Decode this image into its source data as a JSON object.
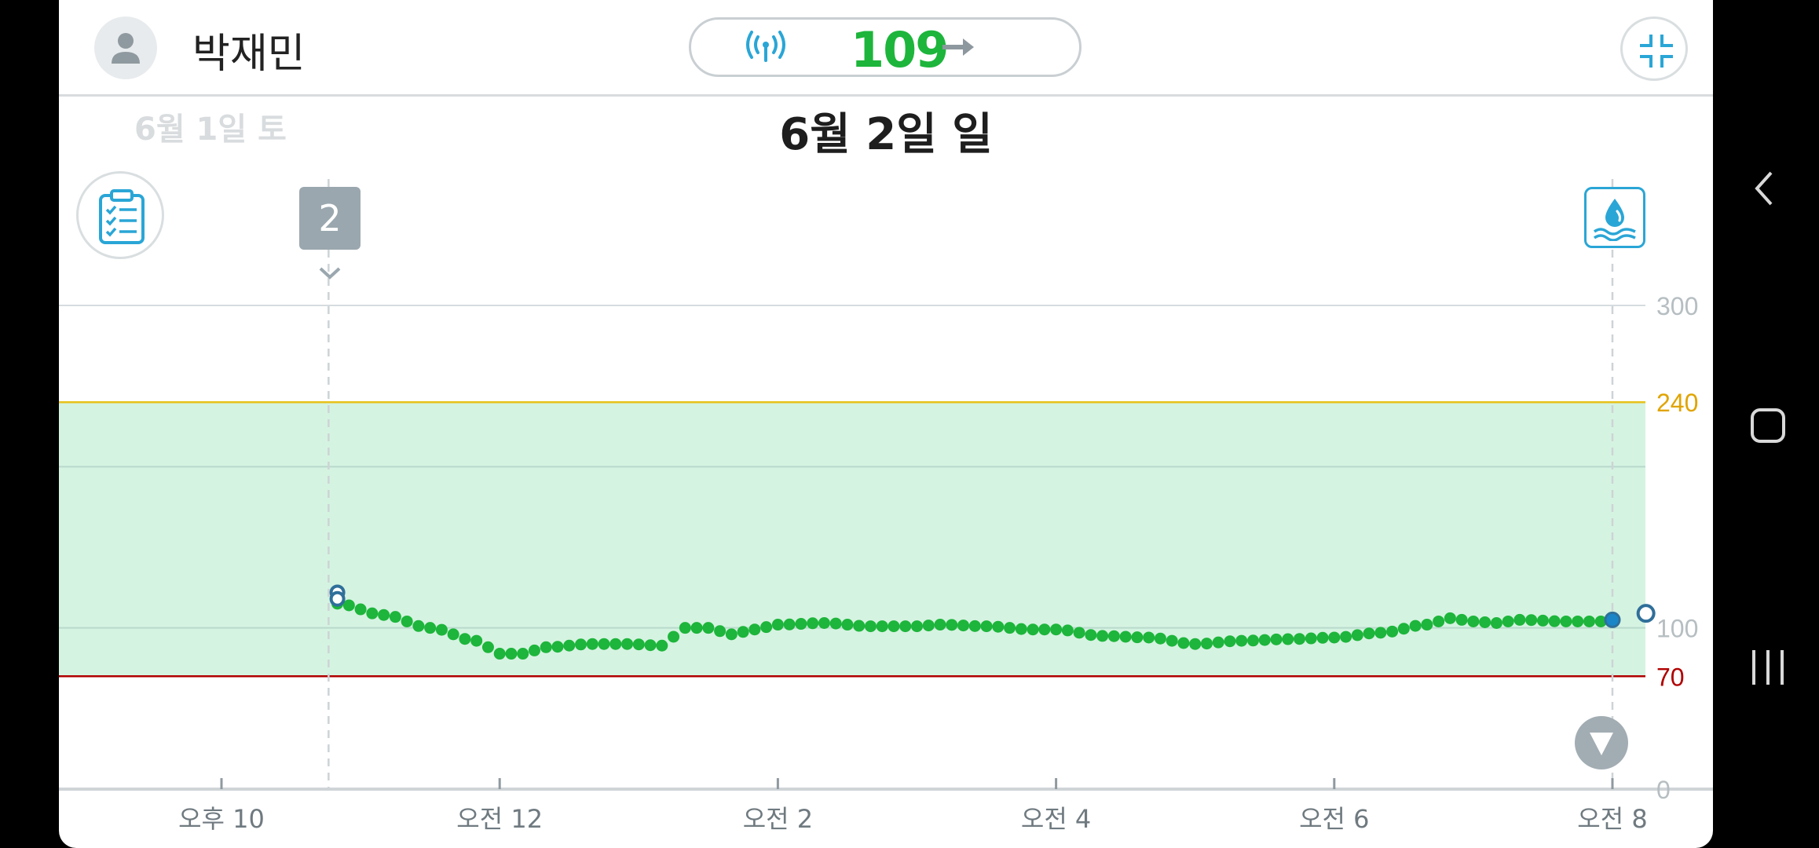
{
  "header": {
    "user_name": "박재민",
    "current_glucose": "109",
    "trend": "steady",
    "icons": {
      "avatar": "person-icon",
      "signal": "signal-broadcast-icon",
      "trend": "arrow-right-icon",
      "collapse": "collapse-icon"
    }
  },
  "dates": {
    "previous": "6월 1일 토",
    "current": "6월 2일 일"
  },
  "event_marker": {
    "label": "2"
  },
  "toolbar_icons": {
    "logbook": "clipboard-checklist-icon",
    "blood_glucose": "blood-drop-icon",
    "scroll_end": "chevron-down-icon"
  },
  "colors": {
    "glucose_line": "#1db53b",
    "target_band": "#d5f3e1",
    "high_line": "#e8c21a",
    "low_line": "#b00000",
    "accent": "#2aa6d6",
    "fingerstick_marker": "#2f6f9a"
  },
  "chart_data": {
    "type": "scatter",
    "title": "",
    "xlabel": "",
    "ylabel": "",
    "ylim": [
      0,
      300
    ],
    "y_ticks": [
      {
        "value": 300,
        "label": "300"
      },
      {
        "value": 240,
        "label": "240"
      },
      {
        "value": 100,
        "label": "100"
      },
      {
        "value": 70,
        "label": "70"
      },
      {
        "value": 0,
        "label": "0"
      }
    ],
    "x_ticks": [
      {
        "hour": 22,
        "label": "오후 10"
      },
      {
        "hour": 24,
        "label": "오전 12"
      },
      {
        "hour": 26,
        "label": "오전 2"
      },
      {
        "hour": 28,
        "label": "오전 4"
      },
      {
        "hour": 30,
        "label": "오전 6"
      },
      {
        "hour": 32,
        "label": "오전 8"
      }
    ],
    "target_range": [
      70,
      240
    ],
    "high_threshold": 240,
    "low_threshold": 70,
    "gridlines": [
      300,
      200,
      100
    ],
    "event_hour": 22.77,
    "current_hour": 32.0,
    "x_range": [
      21.0,
      32.2
    ],
    "sensor_readings": [
      {
        "time": "22:50",
        "value": 115
      },
      {
        "time": "23:10",
        "value": 108
      },
      {
        "time": "23:30",
        "value": 100
      },
      {
        "time": "23:50",
        "value": 92
      },
      {
        "time": "00:00",
        "value": 84
      },
      {
        "time": "00:10",
        "value": 84
      },
      {
        "time": "00:20",
        "value": 88
      },
      {
        "time": "00:40",
        "value": 90
      },
      {
        "time": "00:55",
        "value": 90
      },
      {
        "time": "01:10",
        "value": 89
      },
      {
        "time": "01:20",
        "value": 100
      },
      {
        "time": "01:30",
        "value": 100
      },
      {
        "time": "01:40",
        "value": 96
      },
      {
        "time": "01:50",
        "value": 99
      },
      {
        "time": "02:00",
        "value": 102
      },
      {
        "time": "02:20",
        "value": 103
      },
      {
        "time": "02:40",
        "value": 101
      },
      {
        "time": "03:00",
        "value": 101
      },
      {
        "time": "03:10",
        "value": 102
      },
      {
        "time": "03:30",
        "value": 101
      },
      {
        "time": "03:50",
        "value": 99
      },
      {
        "time": "04:00",
        "value": 99
      },
      {
        "time": "04:20",
        "value": 95
      },
      {
        "time": "04:40",
        "value": 94
      },
      {
        "time": "05:00",
        "value": 90
      },
      {
        "time": "05:20",
        "value": 92
      },
      {
        "time": "05:40",
        "value": 93
      },
      {
        "time": "06:00",
        "value": 94
      },
      {
        "time": "06:20",
        "value": 97
      },
      {
        "time": "06:40",
        "value": 102
      },
      {
        "time": "06:50",
        "value": 106
      },
      {
        "time": "07:00",
        "value": 104
      },
      {
        "time": "07:10",
        "value": 103
      },
      {
        "time": "07:20",
        "value": 105
      },
      {
        "time": "07:40",
        "value": 104
      },
      {
        "time": "07:55",
        "value": 104
      },
      {
        "time": "08:00",
        "value": 105
      }
    ],
    "fingerstick_readings": [
      {
        "time": "22:50",
        "value": 122
      },
      {
        "time": "22:50",
        "value": 118
      },
      {
        "time": "08:07",
        "value": 109
      }
    ]
  },
  "navbar": {
    "back": "back-icon",
    "home": "home-icon",
    "recents": "recents-icon"
  }
}
